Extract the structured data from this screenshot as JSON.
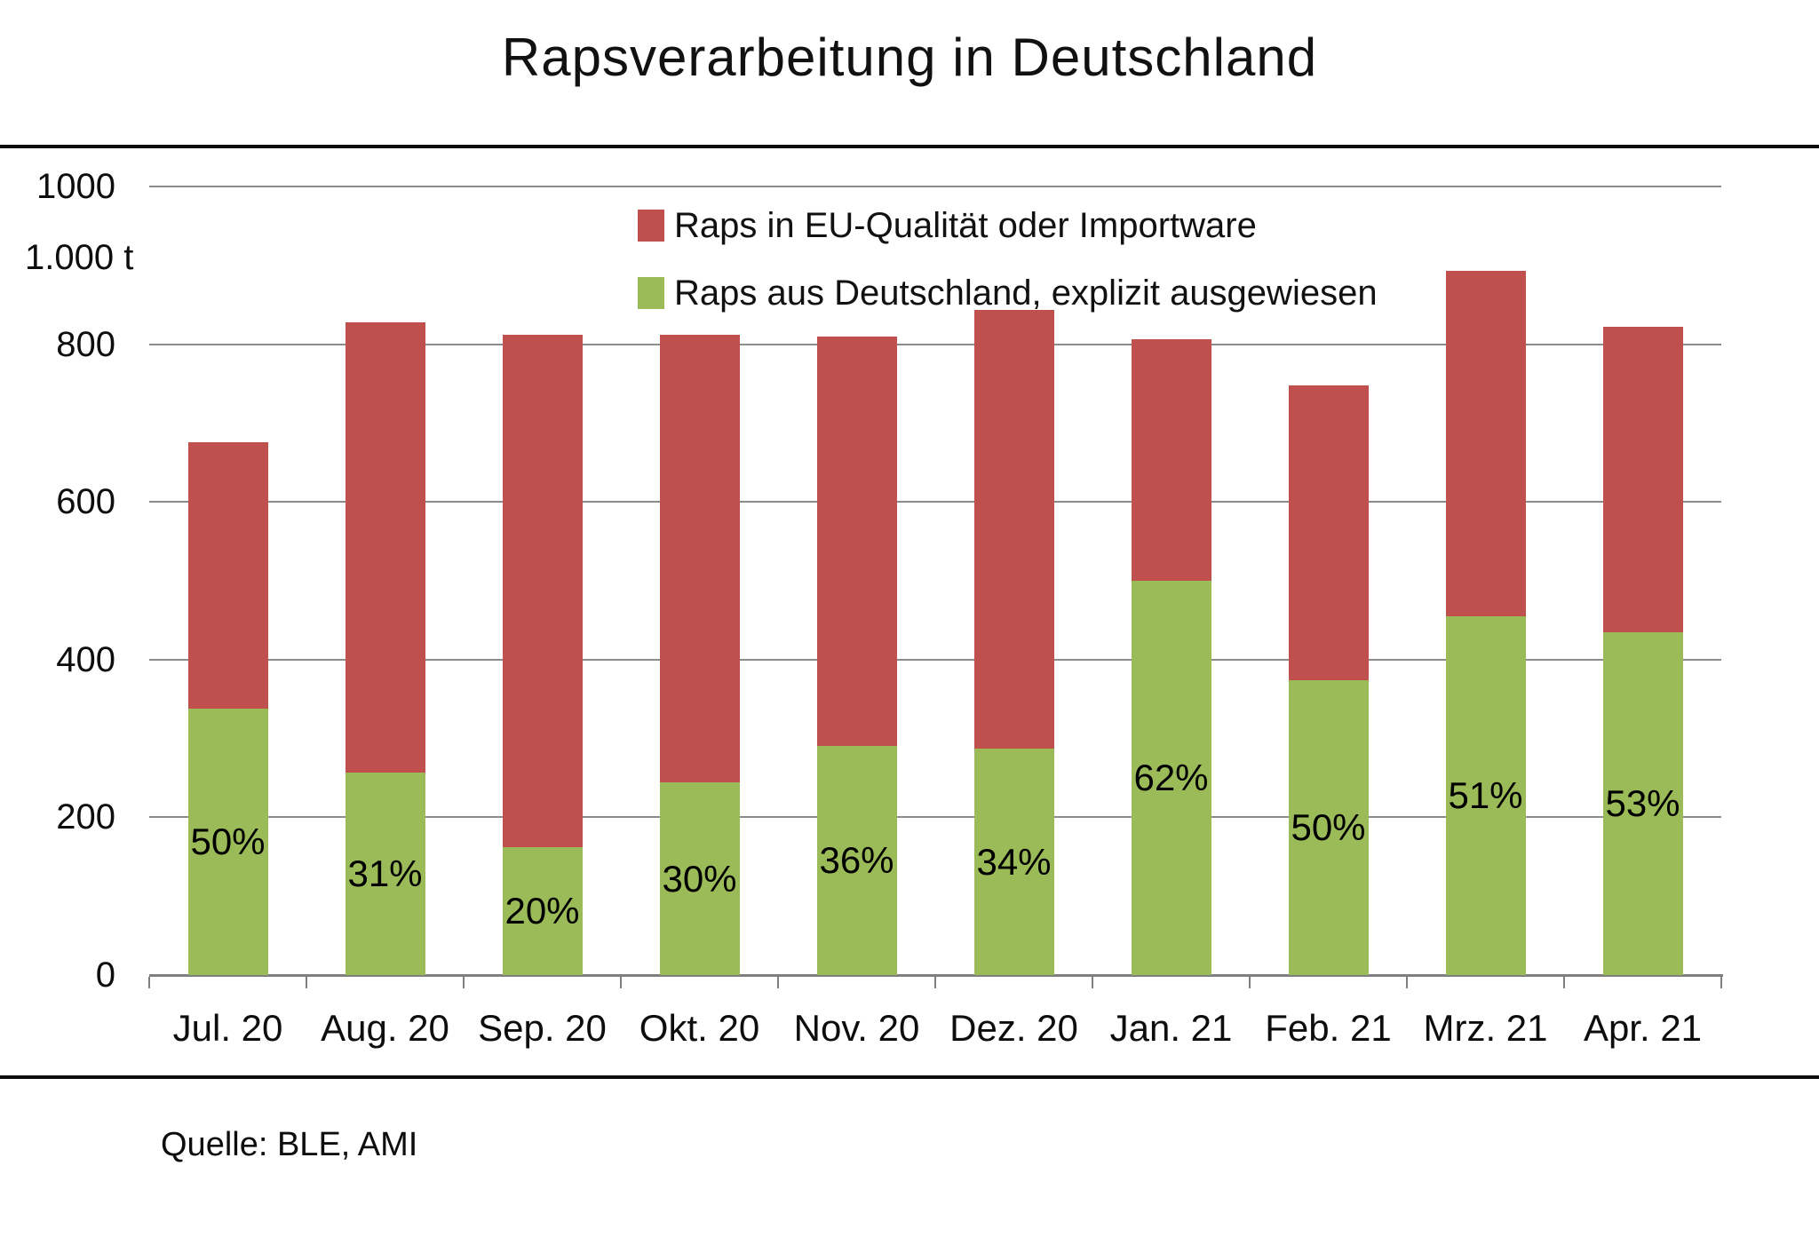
{
  "title": "Rapsverarbeitung in Deutschland",
  "source": "Quelle: BLE, AMI",
  "y_axis": {
    "unit_label": "1.000 t",
    "ticks": [
      0,
      200,
      400,
      600,
      800,
      1000
    ],
    "tick_labels": [
      "0",
      "200",
      "400",
      "600",
      "800",
      "1000"
    ]
  },
  "legend": [
    {
      "label": "Raps in EU-Qualität oder Importware",
      "color": "#C0504D"
    },
    {
      "label": "Raps aus Deutschland, explizit ausgewiesen",
      "color": "#9BBB59"
    }
  ],
  "colors": {
    "red_series": "#C0504D",
    "green_series": "#9BBB59",
    "gridline": "#8C8C8C",
    "axis": "#7F7F7F",
    "rule": "#0d0d0d"
  },
  "chart_data": {
    "type": "bar",
    "stacked": true,
    "title": "Rapsverarbeitung in Deutschland",
    "ylabel": "1.000 t",
    "ylim": [
      0,
      1000
    ],
    "grid": true,
    "legend_position": "top-center-inside",
    "categories": [
      "Jul. 20",
      "Aug. 20",
      "Sep. 20",
      "Okt. 20",
      "Nov. 20",
      "Dez. 20",
      "Jan. 21",
      "Feb. 21",
      "Mrz. 21",
      "Apr. 21"
    ],
    "series": [
      {
        "name": "Raps aus Deutschland, explizit ausgewiesen",
        "color": "#9BBB59",
        "values": [
          338,
          257,
          162,
          244,
          291,
          287,
          500,
          374,
          455,
          435
        ],
        "data_labels": [
          "50%",
          "31%",
          "20%",
          "30%",
          "36%",
          "34%",
          "62%",
          "50%",
          "51%",
          "53%"
        ]
      },
      {
        "name": "Raps in EU-Qualität oder Importware",
        "color": "#C0504D",
        "values": [
          338,
          571,
          650,
          568,
          519,
          557,
          306,
          374,
          438,
          387
        ],
        "data_labels": []
      }
    ],
    "totals": [
      676,
      828,
      812,
      812,
      810,
      844,
      806,
      748,
      893,
      822
    ]
  }
}
